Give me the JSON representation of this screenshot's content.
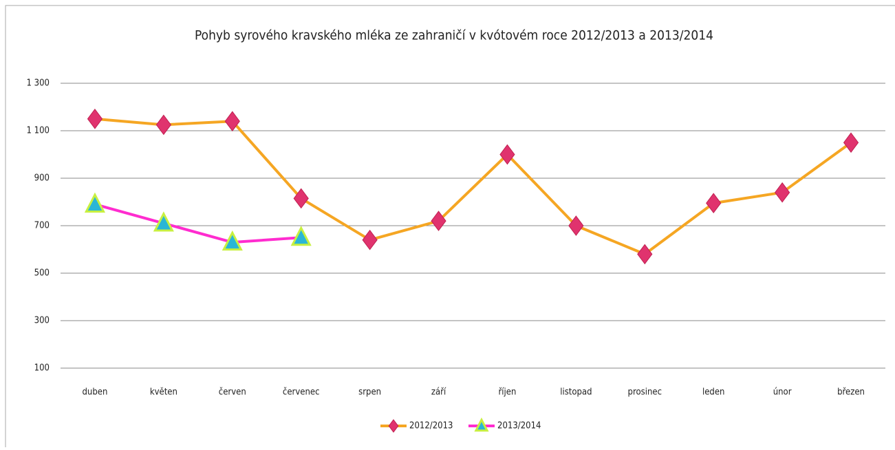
{
  "chart_data": {
    "type": "line",
    "title": "Pohyb syrového kravského mléka ze zahraničí v kvótovém roce 2012/2013 a 2013/2014",
    "categories": [
      "duben",
      "květen",
      "červen",
      "červenec",
      "srpen",
      "září",
      "říjen",
      "listopad",
      "prosinec",
      "leden",
      "únor",
      "březen"
    ],
    "series": [
      {
        "name": "2012/2013",
        "color": "#f5a623",
        "marker": "diamond",
        "marker_color": "#e0336e",
        "values": [
          1150,
          1125,
          1140,
          815,
          640,
          720,
          1000,
          700,
          580,
          795,
          840,
          1050
        ]
      },
      {
        "name": "2013/2014",
        "color": "#ff2ccf",
        "marker": "triangle",
        "marker_color": "#2ab6d6",
        "values": [
          790,
          710,
          630,
          650,
          null,
          null,
          null,
          null,
          null,
          null,
          null,
          null
        ]
      }
    ],
    "ylim": [
      100,
      1300
    ],
    "yticks": [
      {
        "value": 100,
        "label": "100"
      },
      {
        "value": 300,
        "label": "300"
      },
      {
        "value": 500,
        "label": "500"
      },
      {
        "value": 700,
        "label": "700"
      },
      {
        "value": 900,
        "label": "900"
      },
      {
        "value": 1100,
        "label": "1 100"
      },
      {
        "value": 1300,
        "label": "1 300"
      }
    ],
    "grid": true,
    "legend": "bottom"
  }
}
